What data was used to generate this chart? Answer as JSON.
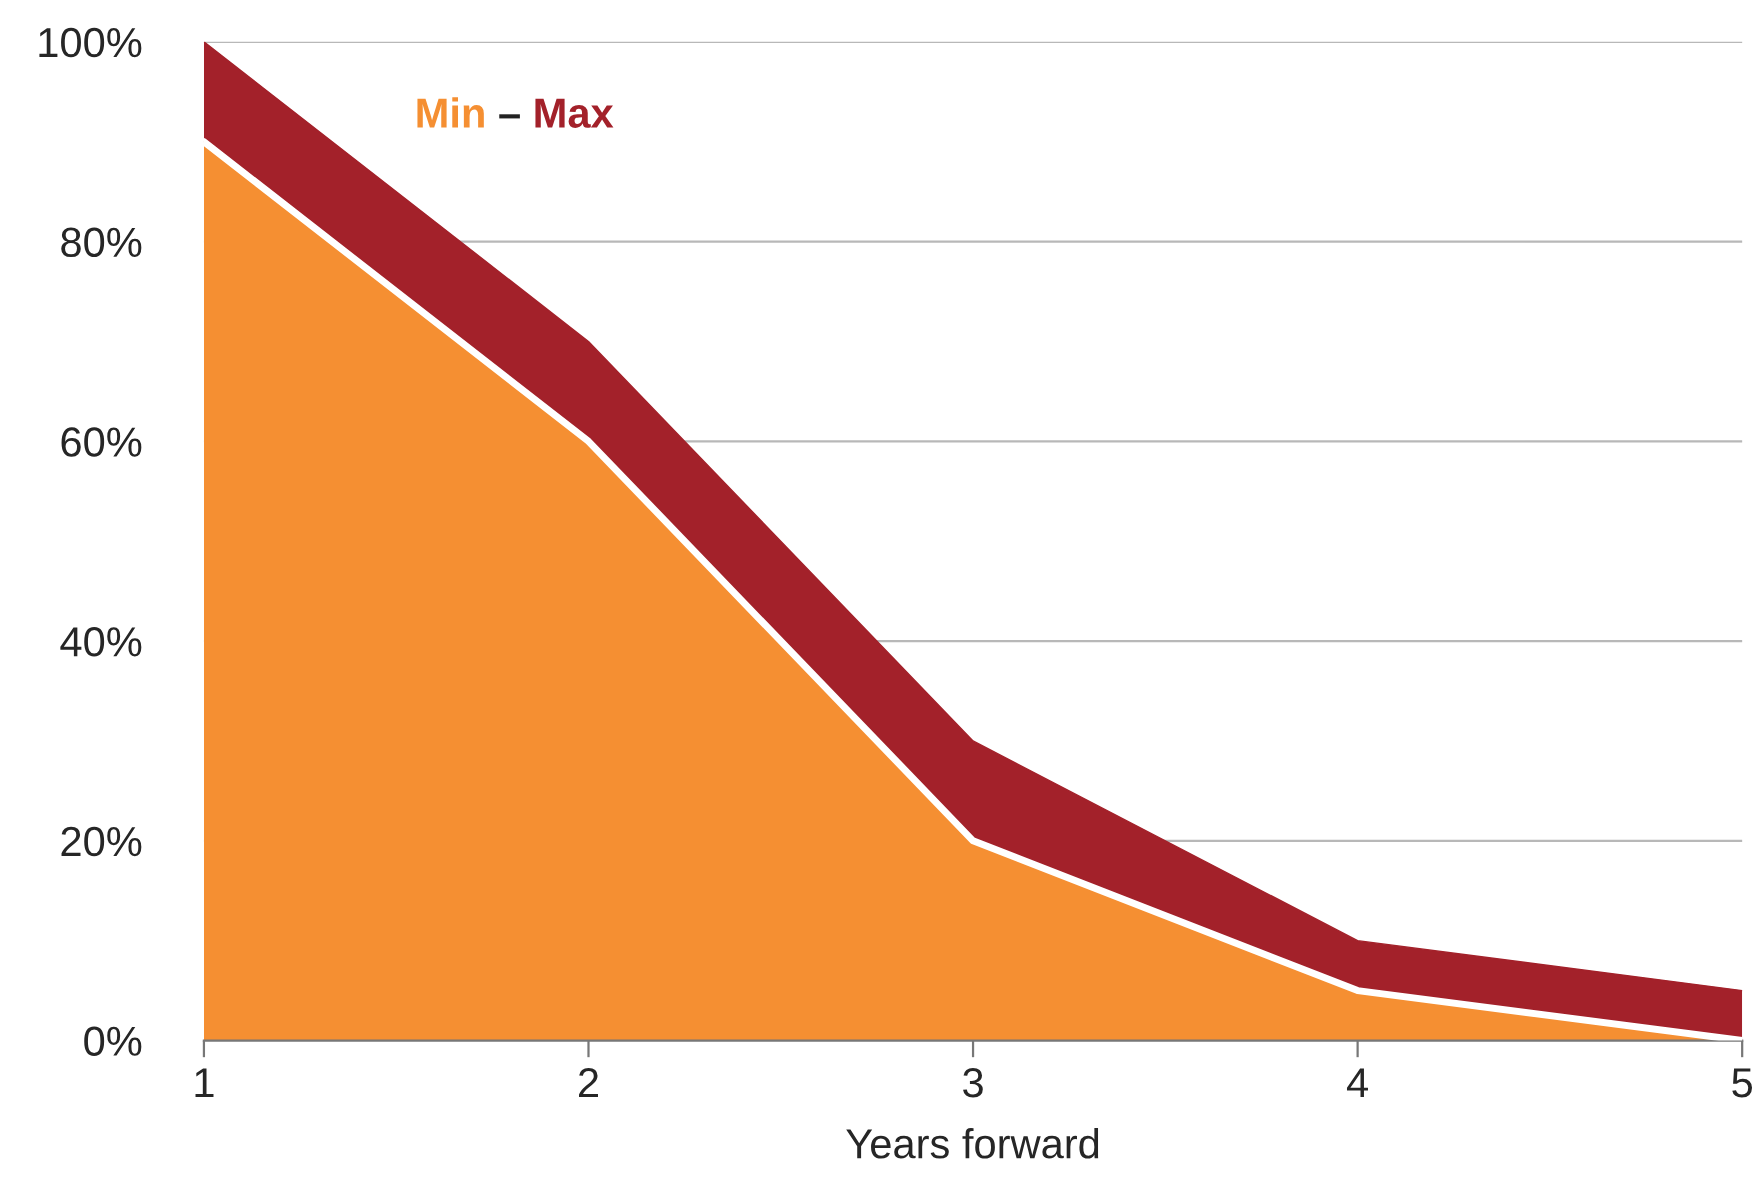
{
  "chart_data": {
    "type": "area",
    "stacked": true,
    "xlabel": "Years forward",
    "x": [
      1,
      2,
      3,
      4,
      5
    ],
    "series": [
      {
        "name": "Min",
        "color": "#f58f32",
        "values": [
          90,
          60,
          20,
          5,
          0
        ]
      },
      {
        "name": "Max",
        "color": "#a3212a",
        "values": [
          10,
          10,
          10,
          5,
          5
        ]
      }
    ],
    "annotations": [
      "–"
    ],
    "xlim": [
      1,
      5
    ],
    "xticks": [
      1,
      2,
      3,
      4,
      5
    ],
    "ylim": [
      0,
      100
    ],
    "yticks": [
      {
        "value": 0,
        "label": "0%"
      },
      {
        "value": 20,
        "label": "20%"
      },
      {
        "value": 40,
        "label": "40%"
      },
      {
        "value": 60,
        "label": "60%"
      },
      {
        "value": 80,
        "label": "80%"
      },
      {
        "value": 100,
        "label": "100%"
      }
    ],
    "grid": "y",
    "legend": "top left"
  }
}
